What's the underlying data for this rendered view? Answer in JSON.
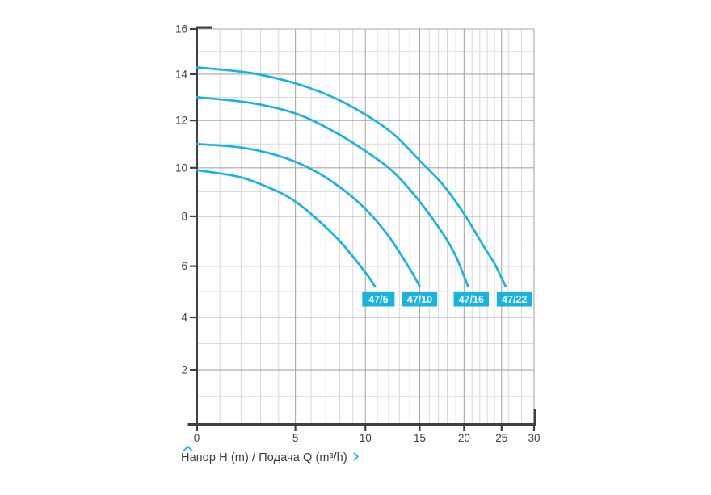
{
  "page": {
    "background_color": "#ffffff"
  },
  "axis_title": {
    "text": "Напор H (m) / Подача Q (m³/h)"
  },
  "icons": {
    "above_title": "chevron-up-icon",
    "after_title": "chevron-right-icon"
  },
  "colors": {
    "accent_cyan": "#17b3e2",
    "axis": "#3f4045",
    "grid_major": "#a8a8a8",
    "grid_minor": "#d7d7d7",
    "tick_text": "#3c3d45",
    "series_label_text": "#ffffff"
  },
  "chart_data": {
    "type": "line",
    "title": "",
    "xlabel": "Подача Q (m³/h)",
    "ylabel": "Напор H (m)",
    "xlim": [
      0,
      30
    ],
    "ylim": [
      0,
      16
    ],
    "x_ticks": [
      0,
      5,
      10,
      15,
      20,
      25,
      30
    ],
    "y_ticks": [
      2,
      4,
      6,
      8,
      10,
      12,
      14,
      16
    ],
    "x_minor_step": 1,
    "y_minor_step": 1,
    "grid": "major+minor",
    "legend_position": "inline-labels-bottom",
    "x_scale": {
      "type": "log-shifted",
      "shift": 10
    },
    "y_scale": {
      "type": "log-shifted",
      "shift": 70
    },
    "series": [
      {
        "name": "47/5",
        "label_q": 11.1,
        "points": [
          [
            0,
            9.9
          ],
          [
            2,
            9.6
          ],
          [
            4,
            9.0
          ],
          [
            5,
            8.6
          ],
          [
            6,
            8.1
          ],
          [
            8,
            7.0
          ],
          [
            10,
            5.75
          ],
          [
            10.8,
            5.2
          ]
        ]
      },
      {
        "name": "47/10",
        "label_q": 15.0,
        "points": [
          [
            0,
            11.0
          ],
          [
            2,
            10.85
          ],
          [
            4,
            10.5
          ],
          [
            6,
            9.95
          ],
          [
            8,
            9.2
          ],
          [
            10,
            8.3
          ],
          [
            12,
            7.2
          ],
          [
            14,
            5.9
          ],
          [
            15,
            5.2
          ]
        ]
      },
      {
        "name": "47/16",
        "label_q": 20.9,
        "points": [
          [
            0,
            13.0
          ],
          [
            2.5,
            12.75
          ],
          [
            5,
            12.3
          ],
          [
            7.5,
            11.55
          ],
          [
            10,
            10.7
          ],
          [
            12.5,
            9.8
          ],
          [
            15,
            8.6
          ],
          [
            17.5,
            7.3
          ],
          [
            19,
            6.4
          ],
          [
            20.5,
            5.2
          ]
        ]
      },
      {
        "name": "47/22",
        "label_q": 26.9,
        "points": [
          [
            0,
            14.3
          ],
          [
            2.5,
            14.05
          ],
          [
            5,
            13.6
          ],
          [
            7.5,
            13.0
          ],
          [
            10,
            12.25
          ],
          [
            12.5,
            11.4
          ],
          [
            15,
            10.3
          ],
          [
            17.5,
            9.3
          ],
          [
            20,
            8.1
          ],
          [
            22.5,
            6.8
          ],
          [
            24,
            6.1
          ],
          [
            25.6,
            5.2
          ]
        ]
      }
    ]
  }
}
